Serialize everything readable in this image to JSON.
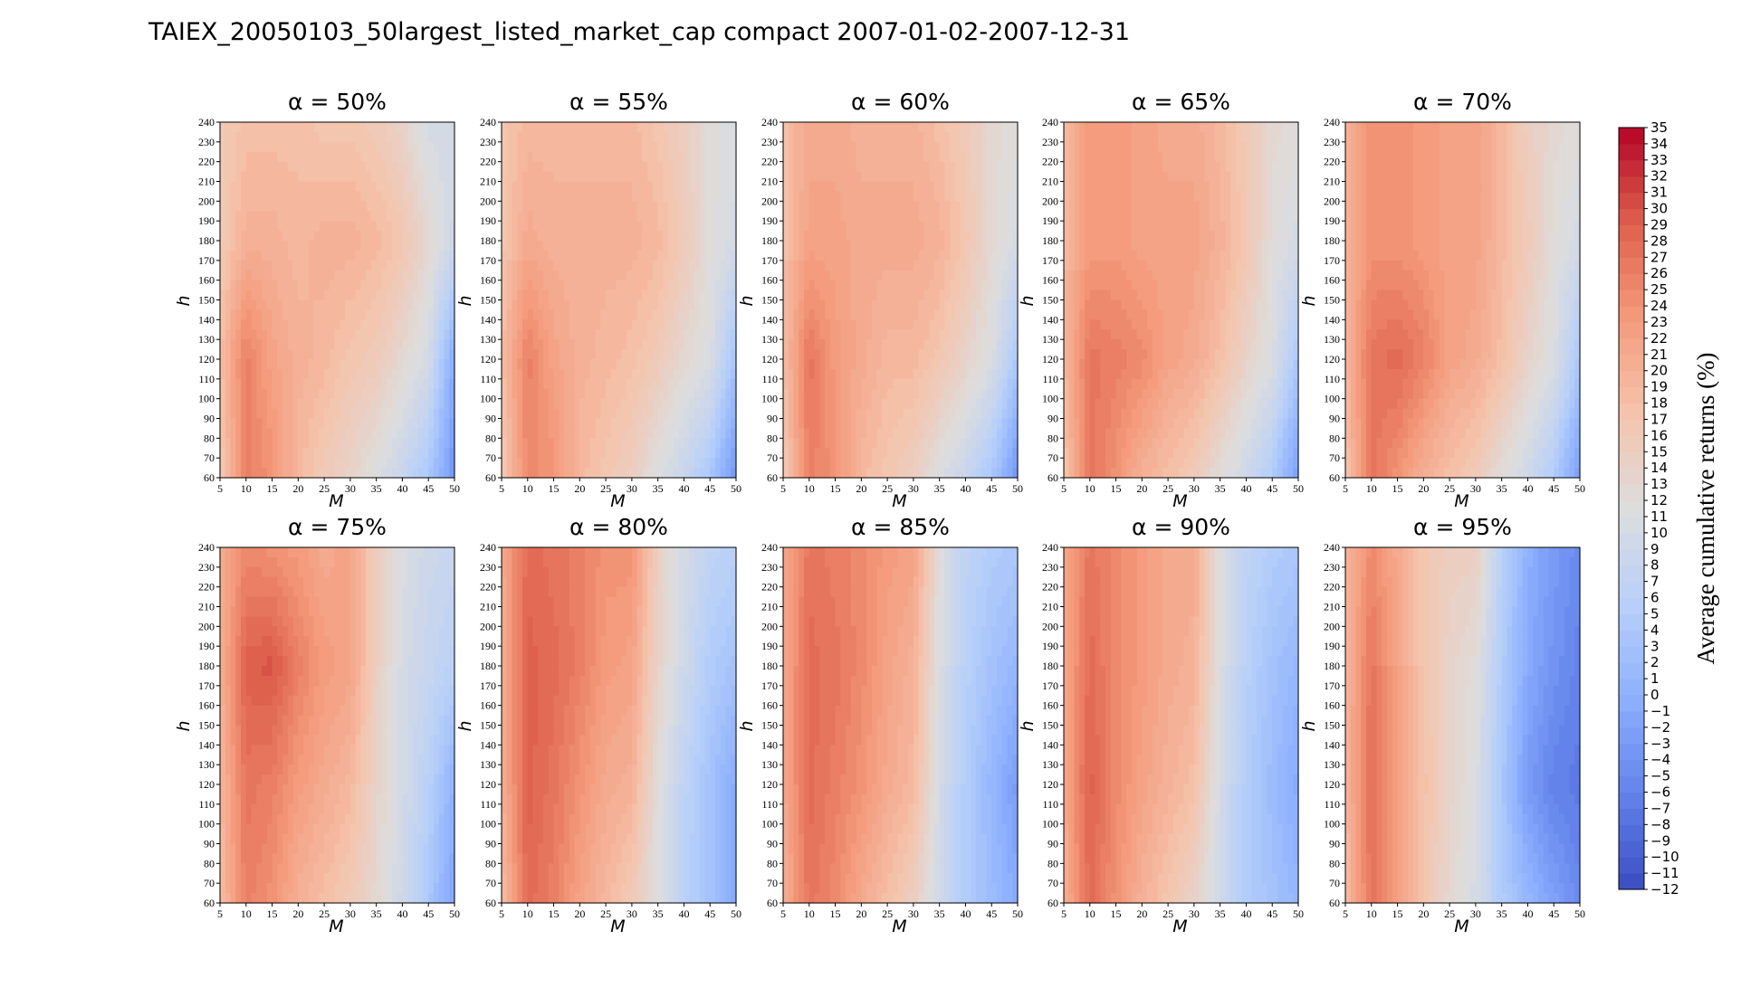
{
  "chart_data": {
    "type": "heatmap",
    "title": "TAIEX_20050103_50largest_listed_market_cap compact 2007-01-02-2007-12-31",
    "xlabel": "M",
    "ylabel": "h",
    "x_ticks": [
      5,
      10,
      15,
      20,
      25,
      30,
      35,
      40,
      45,
      50
    ],
    "y_ticks": [
      60,
      70,
      80,
      90,
      100,
      110,
      120,
      130,
      140,
      150,
      160,
      170,
      180,
      190,
      200,
      210,
      220,
      230,
      240
    ],
    "xlim": [
      5,
      50
    ],
    "ylim": [
      60,
      240
    ],
    "colormap": "coolwarm",
    "colorbar": {
      "label": "Average cumulative returns (%)",
      "min": -12,
      "max": 35,
      "ticks": [
        35,
        34,
        33,
        32,
        31,
        30,
        29,
        28,
        27,
        26,
        25,
        24,
        23,
        22,
        21,
        20,
        19,
        18,
        17,
        16,
        15,
        14,
        13,
        12,
        11,
        10,
        9,
        8,
        7,
        6,
        5,
        4,
        3,
        2,
        1,
        0,
        -1,
        -2,
        -3,
        -4,
        -5,
        -6,
        -7,
        -8,
        -9,
        -10,
        -11,
        -12
      ]
    },
    "panels": [
      {
        "title": "α = 50%",
        "alpha": 50,
        "row_h": [
          60,
          120,
          180,
          240
        ],
        "grid": [
          [
            16,
            26,
            24,
            19,
            16,
            14,
            11,
            8,
            4,
            -4
          ],
          [
            18,
            26,
            22,
            20,
            19,
            17,
            16,
            13,
            10,
            -1
          ],
          [
            16,
            20,
            20,
            19,
            20,
            20,
            19,
            17,
            13,
            9
          ],
          [
            16,
            18,
            18,
            18,
            17,
            17,
            16,
            14,
            10,
            10
          ]
        ]
      },
      {
        "title": "α = 55%",
        "alpha": 55,
        "row_h": [
          60,
          120,
          180,
          240
        ],
        "grid": [
          [
            16,
            25,
            24,
            19,
            17,
            15,
            11,
            8,
            4,
            -4
          ],
          [
            18,
            26,
            22,
            20,
            19,
            18,
            16,
            13,
            11,
            3
          ],
          [
            17,
            21,
            20,
            20,
            20,
            20,
            19,
            16,
            12,
            10
          ],
          [
            17,
            19,
            19,
            19,
            19,
            19,
            17,
            15,
            12,
            11
          ]
        ]
      },
      {
        "title": "α = 60%",
        "alpha": 60,
        "row_h": [
          60,
          120,
          180,
          240
        ],
        "grid": [
          [
            16,
            26,
            24,
            19,
            17,
            15,
            11,
            8,
            4,
            -4
          ],
          [
            18,
            27,
            23,
            21,
            19,
            19,
            17,
            14,
            11,
            4
          ],
          [
            18,
            22,
            22,
            21,
            21,
            21,
            20,
            17,
            13,
            10
          ],
          [
            18,
            21,
            21,
            20,
            20,
            20,
            18,
            16,
            13,
            12
          ]
        ]
      },
      {
        "title": "α = 65%",
        "alpha": 65,
        "row_h": [
          60,
          120,
          180,
          240
        ],
        "grid": [
          [
            17,
            27,
            24,
            20,
            18,
            16,
            12,
            9,
            5,
            -3
          ],
          [
            19,
            27,
            26,
            25,
            22,
            21,
            18,
            14,
            11,
            4
          ],
          [
            19,
            23,
            23,
            22,
            22,
            22,
            20,
            17,
            12,
            10
          ],
          [
            19,
            23,
            23,
            22,
            21,
            21,
            19,
            16,
            13,
            12
          ]
        ]
      },
      {
        "title": "α = 70%",
        "alpha": 70,
        "row_h": [
          60,
          120,
          180,
          240
        ],
        "grid": [
          [
            17,
            27,
            24,
            20,
            18,
            16,
            12,
            9,
            5,
            -3
          ],
          [
            19,
            27,
            28,
            26,
            22,
            21,
            18,
            14,
            11,
            4
          ],
          [
            20,
            24,
            24,
            23,
            22,
            22,
            19,
            16,
            12,
            10
          ],
          [
            20,
            24,
            24,
            23,
            22,
            22,
            19,
            15,
            13,
            12
          ]
        ]
      },
      {
        "title": "α = 75%",
        "alpha": 75,
        "row_h": [
          60,
          120,
          180,
          240
        ],
        "grid": [
          [
            18,
            26,
            24,
            20,
            18,
            16,
            13,
            9,
            4,
            -2
          ],
          [
            19,
            27,
            26,
            23,
            21,
            19,
            14,
            10,
            6,
            0
          ],
          [
            20,
            29,
            30,
            26,
            23,
            22,
            15,
            10,
            8,
            6
          ],
          [
            20,
            25,
            24,
            23,
            21,
            22,
            15,
            11,
            9,
            8
          ]
        ]
      },
      {
        "title": "α = 80%",
        "alpha": 80,
        "row_h": [
          60,
          120,
          180,
          240
        ],
        "grid": [
          [
            18,
            28,
            26,
            22,
            19,
            16,
            11,
            6,
            3,
            -1
          ],
          [
            20,
            29,
            27,
            24,
            21,
            20,
            12,
            7,
            3,
            -1
          ],
          [
            20,
            29,
            28,
            26,
            23,
            22,
            14,
            9,
            5,
            3
          ],
          [
            21,
            28,
            27,
            26,
            24,
            24,
            15,
            10,
            7,
            6
          ]
        ]
      },
      {
        "title": "α = 85%",
        "alpha": 85,
        "row_h": [
          60,
          120,
          180,
          240
        ],
        "grid": [
          [
            20,
            27,
            25,
            21,
            18,
            15,
            9,
            5,
            2,
            -1
          ],
          [
            21,
            28,
            26,
            24,
            21,
            19,
            10,
            5,
            1,
            -3
          ],
          [
            21,
            28,
            27,
            25,
            22,
            20,
            11,
            6,
            3,
            1
          ],
          [
            21,
            27,
            26,
            25,
            23,
            22,
            12,
            7,
            5,
            4
          ]
        ]
      },
      {
        "title": "α = 90%",
        "alpha": 90,
        "row_h": [
          60,
          120,
          180,
          240
        ],
        "grid": [
          [
            20,
            28,
            24,
            20,
            17,
            14,
            9,
            5,
            3,
            1
          ],
          [
            21,
            29,
            25,
            22,
            20,
            18,
            10,
            5,
            2,
            -1
          ],
          [
            21,
            28,
            25,
            23,
            21,
            20,
            11,
            6,
            3,
            1
          ],
          [
            21,
            27,
            25,
            23,
            21,
            21,
            11,
            7,
            5,
            4
          ]
        ]
      },
      {
        "title": "α = 95%",
        "alpha": 95,
        "row_h": [
          60,
          120,
          180,
          240
        ],
        "grid": [
          [
            18,
            27,
            22,
            17,
            13,
            10,
            5,
            1,
            -2,
            -5
          ],
          [
            19,
            28,
            23,
            18,
            14,
            11,
            4,
            -3,
            -6,
            -7
          ],
          [
            19,
            27,
            22,
            17,
            14,
            12,
            5,
            -1,
            -4,
            -6
          ],
          [
            19,
            25,
            21,
            17,
            15,
            15,
            6,
            0,
            -3,
            -5
          ]
        ]
      }
    ]
  }
}
